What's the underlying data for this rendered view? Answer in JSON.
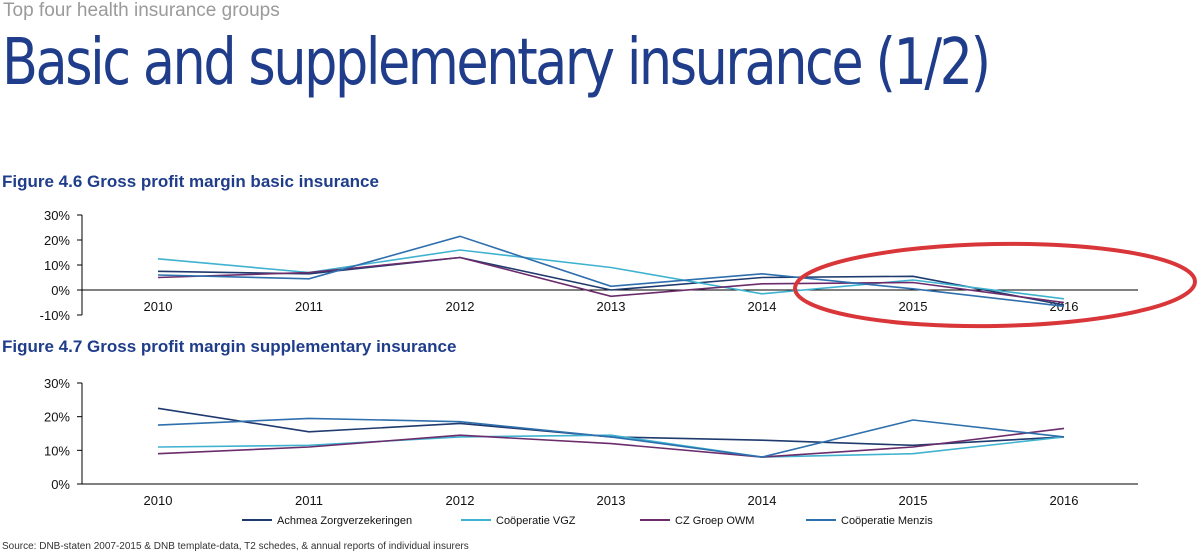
{
  "header": {
    "kicker": "Top four health insurance groups",
    "title": "Basic and supplementary insurance (1/2)"
  },
  "source_text": "Source:    DNB-staten 2007-2015 & DNB template-data, T2 schedes, & annual reports of individual insurers",
  "colors": {
    "Achmea Zorgverzekeringen": "#1f3a6e",
    "Coöperatie VGZ": "#3fb2d0",
    "CZ Groep OWM": "#6b2c6b",
    "Coöperatie Menzis": "#2e6fad",
    "annotation": "#d9363a",
    "title": "#1f3d8a"
  },
  "chart_data": [
    {
      "type": "line",
      "title": "Figure 4.6 Gross profit margin basic insurance",
      "categories": [
        "2010",
        "2011",
        "2012",
        "2013",
        "2014",
        "2015",
        "2016"
      ],
      "y_ticks": [
        "30%",
        "20%",
        "10%",
        "0%",
        "-10%"
      ],
      "ylim": [
        -10,
        30
      ],
      "grid": false,
      "series": [
        {
          "name": "Achmea Zorgverzekeringen",
          "values": [
            7.5,
            6.5,
            13,
            0,
            5,
            5.5,
            -6
          ]
        },
        {
          "name": "Coöperatie VGZ",
          "values": [
            12.5,
            7,
            16,
            9,
            -1.5,
            4,
            -3.5
          ]
        },
        {
          "name": "CZ Groep OWM",
          "values": [
            5,
            7,
            13,
            -2.5,
            2.5,
            3,
            -5
          ]
        },
        {
          "name": "Coöperatie Menzis",
          "values": [
            6,
            4.5,
            21.5,
            1.5,
            6.5,
            0.5,
            -6.5
          ]
        }
      ],
      "annotation": "red ellipse around 2015-2016"
    },
    {
      "type": "line",
      "title": "Figure 4.7 Gross profit margin supplementary insurance",
      "categories": [
        "2010",
        "2011",
        "2012",
        "2013",
        "2014",
        "2015",
        "2016"
      ],
      "y_ticks": [
        "30%",
        "20%",
        "10%",
        "0%"
      ],
      "ylim": [
        0,
        30
      ],
      "grid": false,
      "legend": "bottom",
      "series": [
        {
          "name": "Achmea Zorgverzekeringen",
          "values": [
            22.5,
            15.5,
            18,
            14,
            13,
            11.5,
            14
          ]
        },
        {
          "name": "Coöperatie VGZ",
          "values": [
            11,
            11.5,
            14,
            14.5,
            8,
            9,
            14
          ]
        },
        {
          "name": "CZ Groep OWM",
          "values": [
            9,
            11,
            14.5,
            12,
            8,
            11,
            16.5
          ]
        },
        {
          "name": "Coöperatie Menzis",
          "values": [
            17.5,
            19.5,
            18.5,
            14,
            8,
            19,
            14
          ]
        }
      ]
    }
  ]
}
